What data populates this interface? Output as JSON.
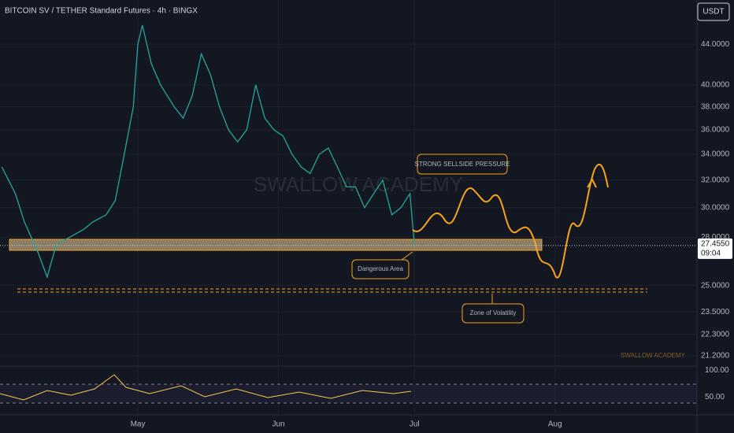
{
  "chart_data": {
    "type": "line",
    "title": "BITCOIN SV / TETHER Standard Futures · 4h · BINGX",
    "currency": "USDT",
    "watermark": "SWALLOW ACADEMY",
    "signature": "SWALLOW ACADEMY",
    "annotations": [
      "STRONG SELLSIDE PRESSURE",
      "Dangerous Area",
      "Zone of Volatility"
    ],
    "last_price_label": "27.4550",
    "countdown": "09:04",
    "log_scale": true,
    "grid": true,
    "color": "#26a69a",
    "x": [
      -30,
      -27,
      -25,
      -22,
      -20,
      -18,
      -15,
      -12,
      -10,
      -7,
      -5,
      -3,
      -1,
      0,
      1,
      3,
      5,
      8,
      10,
      12,
      14,
      16,
      18,
      20,
      22,
      24,
      26,
      28,
      30,
      32,
      34,
      36,
      38,
      40,
      42,
      44,
      46,
      48,
      50,
      52,
      54,
      56,
      58,
      60,
      61
    ],
    "values": [
      33,
      31,
      29,
      27,
      25.5,
      27.5,
      28,
      28.5,
      29,
      29.5,
      30.5,
      34,
      38,
      44,
      46,
      42,
      40,
      38,
      37,
      39,
      43,
      41,
      38,
      36,
      35,
      36,
      40,
      37,
      36,
      35.5,
      34,
      33,
      32.5,
      34,
      34.5,
      33,
      31.5,
      31.5,
      30,
      31,
      32,
      29.5,
      30,
      31,
      27.455
    ],
    "xlim": [
      -30.4,
      123.3
    ],
    "xticks": [
      {
        "value": 0,
        "label": "May"
      },
      {
        "value": 31,
        "label": "Jun"
      },
      {
        "value": 61,
        "label": "Jul"
      },
      {
        "value": 92,
        "label": "Aug"
      }
    ],
    "ylim": [
      20.7,
      48.8
    ],
    "yticks": [
      {
        "value": 44,
        "label": "44.0000"
      },
      {
        "value": 40,
        "label": "40.0000"
      },
      {
        "value": 38,
        "label": "38.0000"
      },
      {
        "value": 36,
        "label": "36.0000"
      },
      {
        "value": 34,
        "label": "34.0000"
      },
      {
        "value": 32,
        "label": "32.0000"
      },
      {
        "value": 30,
        "label": "30.0000"
      },
      {
        "value": 28,
        "label": "28.0000"
      },
      {
        "value": 25,
        "label": "25.0000"
      },
      {
        "value": 23.5,
        "label": "23.5000"
      },
      {
        "value": 22.3,
        "label": "22.3000"
      },
      {
        "value": 21.2,
        "label": "21.2000"
      }
    ],
    "rsi_ylim": [
      17,
      108
    ],
    "rsi_yticks": [
      {
        "value": 100,
        "label": "100.00"
      },
      {
        "value": 50,
        "label": "50.00"
      }
    ]
  }
}
